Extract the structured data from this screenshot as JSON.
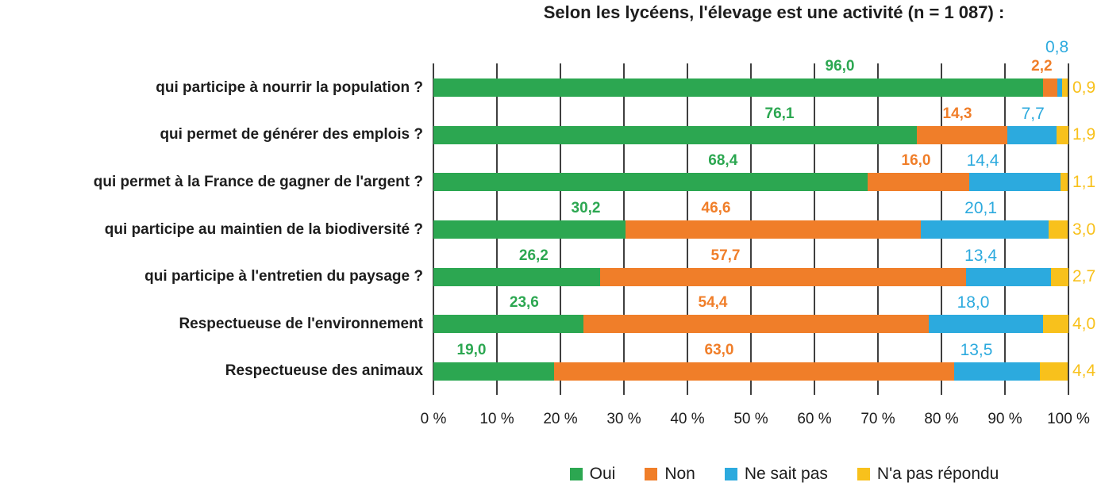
{
  "title": "Selon les lycéens, l'élevage est une activité (n = 1 087) :",
  "chart_data": {
    "type": "bar",
    "stacked": true,
    "orientation": "horizontal",
    "title": "Selon les lycéens, l'élevage est une activité (n = 1 087) :",
    "categories": [
      "qui participe à nourrir la population ?",
      "qui permet de générer des emplois ?",
      "qui permet à la France de gagner de l'argent ?",
      "qui participe au maintien de la biodiversité ?",
      "qui participe à l'entretien du paysage ?",
      "Respectueuse de l'environnement",
      "Respectueuse des animaux"
    ],
    "series": [
      {
        "name": "Oui",
        "color": "#2ca751",
        "label_bold": true,
        "values": [
          96.0,
          76.1,
          68.4,
          30.2,
          26.2,
          23.6,
          19.0
        ],
        "label_x": [
          64,
          54.5,
          45.6,
          24,
          15.8,
          14.3,
          6.0
        ]
      },
      {
        "name": "Non",
        "color": "#f07e29",
        "label_bold": true,
        "values": [
          2.2,
          14.3,
          16.0,
          46.6,
          57.7,
          54.4,
          63.0
        ],
        "label_x": [
          95.8,
          82.5,
          76.0,
          44.5,
          46.0,
          44.0,
          45.0
        ]
      },
      {
        "name": "Ne sait pas",
        "color": "#2caade",
        "label_bold": false,
        "values": [
          0.8,
          7.7,
          14.4,
          20.1,
          13.4,
          18.0,
          13.5
        ],
        "label_x": [
          98.2,
          94.4,
          86.5,
          86.2,
          86.2,
          85.0,
          85.5
        ],
        "label_dy": [
          -24,
          0,
          0,
          0,
          0,
          0,
          0
        ]
      },
      {
        "name": "N'a pas répondu",
        "color": "#f8c11c",
        "label_bold": false,
        "values": [
          0.9,
          1.9,
          1.1,
          3.0,
          2.7,
          4.0,
          4.4
        ],
        "label_position": "outside-right"
      }
    ],
    "value_format": "one-decimal-comma",
    "xlim": [
      0,
      100
    ],
    "x_tick_labels": [
      "0 %",
      "10 %",
      "20 %",
      "30 %",
      "40 %",
      "50 %",
      "60 %",
      "70 %",
      "80 %",
      "90 %",
      "100 %"
    ],
    "grid": "vertical",
    "legend_position": "bottom"
  }
}
